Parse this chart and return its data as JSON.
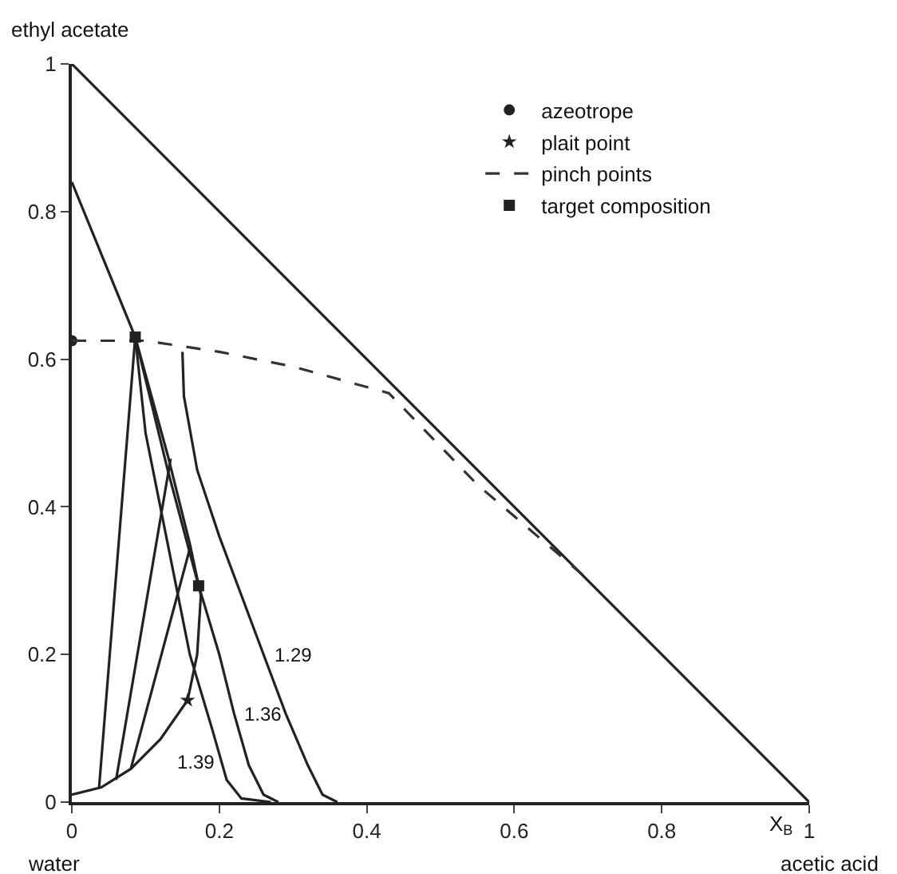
{
  "chart_data": {
    "type": "line",
    "xlabel": "X$_{B}$",
    "xlim": [
      0,
      1
    ],
    "ylim": [
      0,
      1
    ],
    "xticks": [
      0,
      0.2,
      0.4,
      0.6,
      0.8,
      1
    ],
    "yticks": [
      0,
      0.2,
      0.4,
      0.6,
      0.8,
      1
    ],
    "legend": "top right",
    "annotations": [
      {
        "text": "ethyl acetate",
        "x": 0,
        "y": 1
      },
      {
        "text": "water",
        "x": 0,
        "y": 0
      },
      {
        "text": "acetic acid",
        "x": 1,
        "y": 0
      },
      {
        "text": "1.29",
        "x": 0.27,
        "y": 0.2
      },
      {
        "text": "1.36",
        "x": 0.23,
        "y": 0.12
      },
      {
        "text": "1.39",
        "x": 0.2,
        "y": 0.055
      }
    ],
    "series": [
      {
        "color": "#222222",
        "marker": "none",
        "line_style": "solid",
        "x": [
          0,
          1
        ],
        "values": [
          1,
          0
        ]
      },
      {
        "color": "#222222",
        "marker": "none",
        "line_style": "solid",
        "x": [
          0,
          0.086,
          0.13,
          0.16,
          0.175,
          0.17,
          0.157,
          0.12,
          0.08,
          0.04,
          0
        ],
        "values": [
          0.84,
          0.63,
          0.47,
          0.35,
          0.28,
          0.2,
          0.138,
          0.085,
          0.045,
          0.02,
          0.01
        ]
      },
      {
        "color": "#222222",
        "marker": "none",
        "line_style": "solid",
        "x": [
          0.037,
          0.086
        ],
        "values": [
          0.02,
          0.63
        ]
      },
      {
        "color": "#222222",
        "marker": "none",
        "line_style": "solid",
        "x": [
          0.06,
          0.134
        ],
        "values": [
          0.03,
          0.465
        ]
      },
      {
        "color": "#222222",
        "marker": "none",
        "line_style": "solid",
        "x": [
          0.08,
          0.161
        ],
        "values": [
          0.045,
          0.347
        ]
      },
      {
        "color": "#222222",
        "marker": "none",
        "line_style": "solid",
        "x": [
          0.15,
          0.152,
          0.17,
          0.2,
          0.23,
          0.26,
          0.29,
          0.32,
          0.34,
          0.36
        ],
        "values": [
          0.61,
          0.55,
          0.45,
          0.36,
          0.28,
          0.2,
          0.12,
          0.05,
          0.01,
          0
        ]
      },
      {
        "color": "#222222",
        "marker": "none",
        "line_style": "solid",
        "x": [
          0.086,
          0.13,
          0.17,
          0.2,
          0.22,
          0.24,
          0.26,
          0.28
        ],
        "values": [
          0.63,
          0.45,
          0.3,
          0.2,
          0.12,
          0.05,
          0.01,
          0
        ]
      },
      {
        "color": "#222222",
        "marker": "none",
        "line_style": "solid",
        "x": [
          0.086,
          0.1,
          0.13,
          0.16,
          0.19,
          0.21,
          0.23,
          0.27
        ],
        "values": [
          0.63,
          0.5,
          0.35,
          0.2,
          0.1,
          0.03,
          0.005,
          0
        ]
      },
      {
        "name": "azeotrope",
        "type": "scatter",
        "color": "#222222",
        "marker": "circle",
        "x": [
          0
        ],
        "values": [
          0.625
        ]
      },
      {
        "name": "plait point",
        "type": "scatter",
        "color": "#222222",
        "marker": "star",
        "x": [
          0.157
        ],
        "values": [
          0.138
        ]
      },
      {
        "name": "pinch points",
        "color": "#333333",
        "marker": "none",
        "line_style": "dashed",
        "x": [
          0,
          0.1,
          0.2,
          0.3,
          0.43,
          0.55,
          0.695
        ],
        "values": [
          0.625,
          0.625,
          0.61,
          0.59,
          0.554,
          0.43,
          0.306
        ]
      },
      {
        "name": "target composition",
        "type": "scatter",
        "color": "#222222",
        "marker": "square",
        "x": [
          0.086,
          0.172
        ],
        "values": [
          0.63,
          0.293
        ]
      }
    ]
  }
}
